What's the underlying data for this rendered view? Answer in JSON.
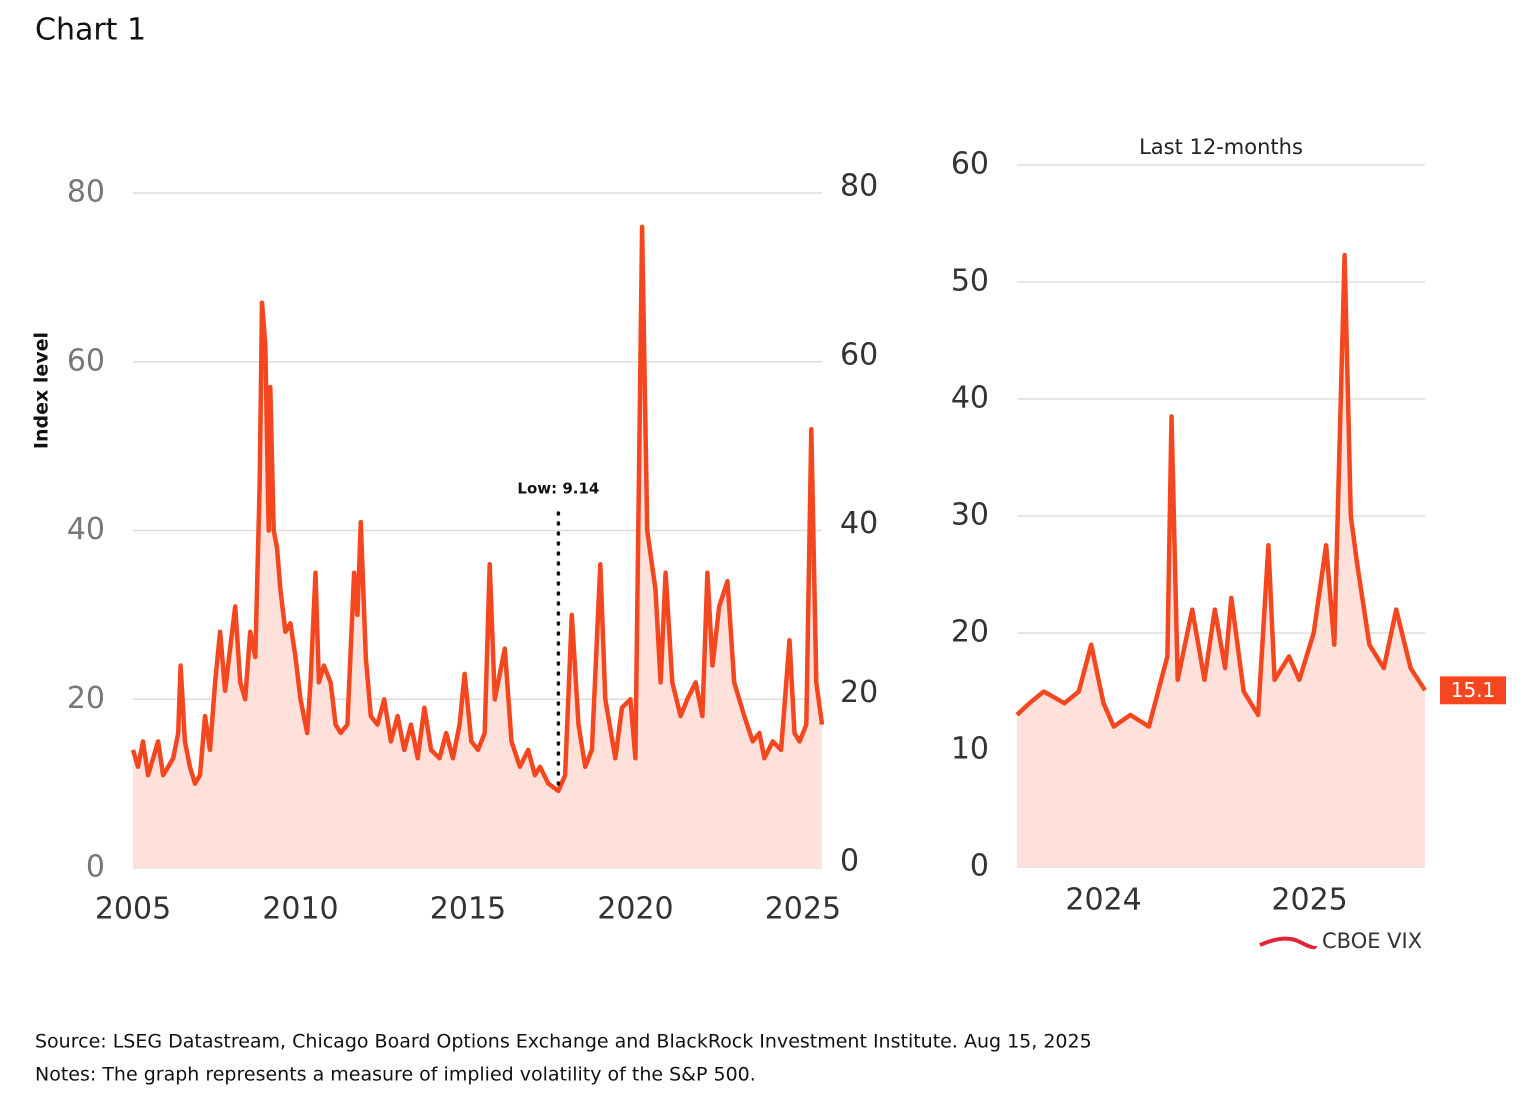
{
  "title": "Chart 1",
  "source": "Source: LSEG Datastream, Chicago Board Options Exchange and BlackRock Investment Institute. Aug 15, 2025",
  "notes": "Notes: The graph represents a measure of implied volatility of the S&P 500.",
  "chart_data": [
    {
      "type": "line",
      "area": true,
      "ylabel": "Index level",
      "xlim": [
        2005,
        2025.57
      ],
      "xticks": [
        2005,
        2010,
        2015,
        2020,
        2025
      ],
      "ylim": [
        0,
        80
      ],
      "yticks": [
        0,
        20,
        40,
        60,
        80
      ],
      "y2lim": [
        0,
        80
      ],
      "y2ticks": [
        0,
        20,
        40,
        60,
        80
      ],
      "grid": true,
      "annotations": [
        {
          "text": "Low: 9.14",
          "x": 2017.7,
          "y": 9.14
        }
      ],
      "series": [
        {
          "color": "#f4471f",
          "x": [
            2005.0,
            2005.15,
            2005.3,
            2005.45,
            2005.6,
            2005.75,
            2005.9,
            2006.05,
            2006.2,
            2006.35,
            2006.42,
            2006.55,
            2006.7,
            2006.85,
            2007.0,
            2007.15,
            2007.3,
            2007.45,
            2007.6,
            2007.75,
            2007.9,
            2008.05,
            2008.2,
            2008.35,
            2008.5,
            2008.65,
            2008.78,
            2008.85,
            2008.95,
            2009.05,
            2009.1,
            2009.2,
            2009.3,
            2009.4,
            2009.55,
            2009.7,
            2009.85,
            2010.0,
            2010.2,
            2010.3,
            2010.45,
            2010.55,
            2010.7,
            2010.9,
            2011.05,
            2011.2,
            2011.4,
            2011.6,
            2011.7,
            2011.8,
            2011.95,
            2012.1,
            2012.3,
            2012.5,
            2012.7,
            2012.9,
            2013.1,
            2013.3,
            2013.5,
            2013.7,
            2013.9,
            2014.15,
            2014.35,
            2014.55,
            2014.75,
            2014.9,
            2015.1,
            2015.3,
            2015.5,
            2015.65,
            2015.8,
            2016.1,
            2016.3,
            2016.55,
            2016.8,
            2017.0,
            2017.15,
            2017.4,
            2017.7,
            2017.9,
            2018.1,
            2018.3,
            2018.5,
            2018.7,
            2018.95,
            2019.1,
            2019.4,
            2019.6,
            2019.85,
            2020.0,
            2020.2,
            2020.35,
            2020.6,
            2020.75,
            2020.9,
            2021.1,
            2021.35,
            2021.55,
            2021.8,
            2022.0,
            2022.15,
            2022.3,
            2022.5,
            2022.75,
            2022.95,
            2023.25,
            2023.5,
            2023.7,
            2023.85,
            2024.1,
            2024.35,
            2024.6,
            2024.75,
            2024.9,
            2025.1,
            2025.25,
            2025.4,
            2025.57
          ],
          "values": [
            14,
            12,
            15,
            11,
            13,
            15,
            11,
            12,
            13,
            16,
            24,
            15,
            12,
            10,
            11,
            18,
            14,
            22,
            28,
            21,
            26,
            31,
            22,
            20,
            28,
            25,
            45,
            67,
            62,
            40,
            57,
            40,
            38,
            33,
            28,
            29,
            25,
            20,
            16,
            22,
            35,
            22,
            24,
            22,
            17,
            16,
            17,
            35,
            30,
            41,
            25,
            18,
            17,
            20,
            15,
            18,
            14,
            17,
            13,
            19,
            14,
            13,
            16,
            13,
            17,
            23,
            15,
            14,
            16,
            36,
            20,
            26,
            15,
            12,
            14,
            11,
            12,
            10,
            9.14,
            11,
            30,
            17,
            12,
            14,
            36,
            20,
            13,
            19,
            20,
            13,
            76,
            40,
            33,
            22,
            35,
            22,
            18,
            20,
            22,
            18,
            35,
            24,
            31,
            34,
            22,
            18,
            15,
            16,
            13,
            15,
            14,
            27,
            16,
            15,
            17,
            52,
            22,
            17
          ]
        }
      ]
    },
    {
      "type": "line",
      "area": true,
      "subtitle": "Last 12-months",
      "xlim": [
        2023.58,
        2025.56
      ],
      "xticks": [
        2024,
        2025
      ],
      "ylim": [
        0,
        60
      ],
      "yticks": [
        0,
        10,
        20,
        30,
        40,
        50,
        60
      ],
      "grid": true,
      "legend": "bottom-right",
      "series": [
        {
          "name": "CBOE VIX",
          "color": "#f4471f",
          "x": [
            2023.58,
            2023.64,
            2023.71,
            2023.81,
            2023.88,
            2023.94,
            2024.0,
            2024.05,
            2024.13,
            2024.22,
            2024.28,
            2024.31,
            2024.33,
            2024.36,
            2024.43,
            2024.49,
            2024.54,
            2024.59,
            2024.62,
            2024.68,
            2024.75,
            2024.8,
            2024.83,
            2024.9,
            2024.95,
            2025.02,
            2025.08,
            2025.12,
            2025.17,
            2025.2,
            2025.23,
            2025.29,
            2025.36,
            2025.42,
            2025.49,
            2025.56
          ],
          "values": [
            13,
            14,
            15,
            14,
            15,
            19,
            14,
            12,
            13,
            12,
            16,
            18,
            38.5,
            16,
            22,
            16,
            22,
            17,
            23,
            15,
            13,
            27.5,
            16,
            18,
            16,
            20,
            27.5,
            19,
            52.3,
            30,
            26,
            19,
            17,
            22,
            17,
            15.1
          ]
        }
      ]
    }
  ]
}
